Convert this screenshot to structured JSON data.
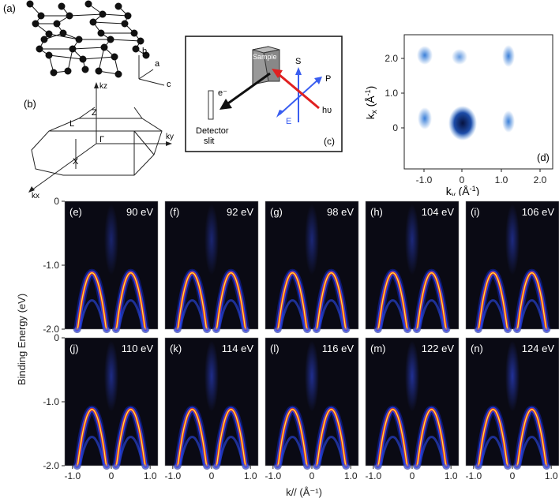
{
  "structure": {
    "label": "(a)",
    "axes": {
      "b": "b",
      "a": "a",
      "c": "c"
    }
  },
  "brillouin": {
    "label": "(b)",
    "points": {
      "kz": "kz",
      "Z": "Z",
      "L": "L",
      "Gamma": "Γ",
      "ky": "ky",
      "X": "X",
      "kx": "kx"
    }
  },
  "setup": {
    "label": "(c)",
    "sample": "Sample",
    "electron": "e⁻",
    "detector": [
      "Detector",
      "slit"
    ],
    "s": "S",
    "p": "P",
    "e_vec": "E",
    "hv": "hυ",
    "colors": {
      "electron_arrow": "#111111",
      "photon_arrow": "#e02020",
      "polarization": "#3a5ef0"
    }
  },
  "fermi_map": {
    "label": "(d)",
    "xlabel": "k",
    "xlabel_sub": "y",
    "xlabel_unit": " (Å",
    "ylabel": "k",
    "ylabel_sub": "x",
    "ylabel_unit": " (Å",
    "x_ticks": [
      "-1.0",
      "0",
      "1.0",
      "2.0"
    ],
    "y_ticks": [
      "0",
      "1.0",
      "2.0"
    ]
  },
  "chart_data": {
    "type": "heatmap",
    "ylabel": "Binding Energy (eV)",
    "xlabel": "k// (Å⁻¹)",
    "xlim": [
      -1.2,
      1.2
    ],
    "ylim": [
      -2.0,
      0.0
    ],
    "x_ticks": [
      "-1.0",
      "0",
      "1.0"
    ],
    "y_ticks": [
      "0",
      "-1.0",
      "-2.0"
    ],
    "colormap": [
      "#0a0a14",
      "#1020a0",
      "#3050ff",
      "#e02020",
      "#ff8000",
      "#ffe060"
    ],
    "panels": [
      {
        "label": "(e)",
        "photon_energy": "90 eV"
      },
      {
        "label": "(f)",
        "photon_energy": "92 eV"
      },
      {
        "label": "(g)",
        "photon_energy": "98 eV"
      },
      {
        "label": "(h)",
        "photon_energy": "104 eV"
      },
      {
        "label": "(i)",
        "photon_energy": "106 eV"
      },
      {
        "label": "(j)",
        "photon_energy": "110 eV"
      },
      {
        "label": "(k)",
        "photon_energy": "114 eV"
      },
      {
        "label": "(l)",
        "photon_energy": "116 eV"
      },
      {
        "label": "(m)",
        "photon_energy": "122 eV"
      },
      {
        "label": "(n)",
        "photon_energy": "124 eV"
      }
    ]
  }
}
